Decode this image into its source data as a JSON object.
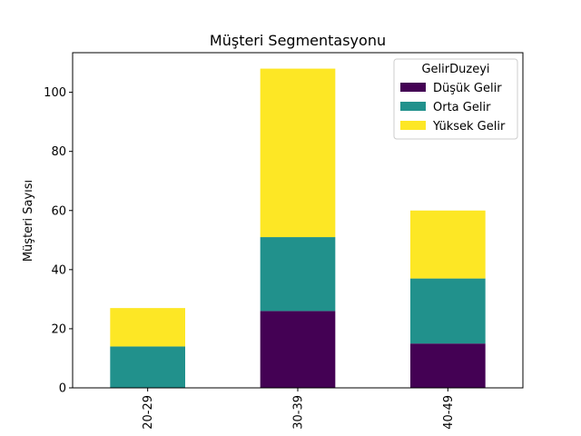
{
  "chart_data": {
    "type": "bar",
    "stacked": true,
    "title": "Müşteri Segmentasyonu",
    "xlabel": "",
    "ylabel": "Müşteri Sayısı",
    "categories": [
      "20-29",
      "30-39",
      "40-49"
    ],
    "series": [
      {
        "name": "Düşük Gelir",
        "values": [
          0,
          26,
          15
        ],
        "color": "#440154"
      },
      {
        "name": "Orta Gelir",
        "values": [
          14,
          25,
          22
        ],
        "color": "#21918c"
      },
      {
        "name": "Yüksek Gelir",
        "values": [
          13,
          57,
          23
        ],
        "color": "#fde725"
      }
    ],
    "ylim": [
      0,
      113.4
    ],
    "yticks": [
      0,
      20,
      40,
      60,
      80,
      100
    ],
    "legend": {
      "title": "GelirDuzeyi",
      "placement": "top-right"
    },
    "grid": false
  }
}
